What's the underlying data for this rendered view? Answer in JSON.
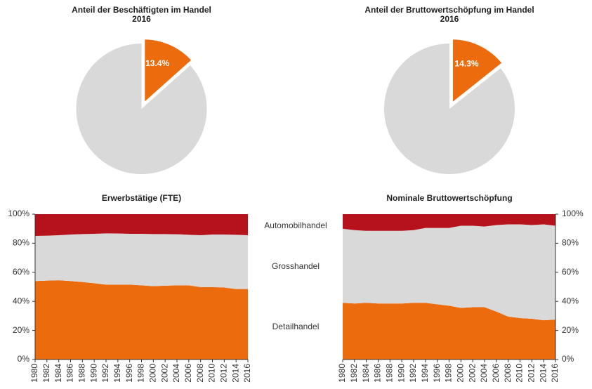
{
  "chart_data": [
    {
      "type": "pie",
      "title": "Anteil der Beschäftigten im Handel",
      "subtitle": "2016",
      "values": [
        13.4,
        86.6
      ],
      "value_labels": [
        "13.4%",
        null
      ],
      "colors": [
        "#ec6c0d",
        "#d9d9d9"
      ],
      "explode": [
        true,
        false
      ]
    },
    {
      "type": "pie",
      "title": "Anteil der Bruttowertschöpfung im Handel",
      "subtitle": "2016",
      "values": [
        14.3,
        85.7
      ],
      "value_labels": [
        "14.3%",
        null
      ],
      "colors": [
        "#ec6c0d",
        "#d9d9d9"
      ],
      "explode": [
        true,
        false
      ]
    },
    {
      "type": "stacked_area",
      "title": "Erwerbstätige (FTE)",
      "y_axis_position": "left",
      "x": [
        1980,
        1982,
        1984,
        1986,
        1988,
        1990,
        1992,
        1994,
        1996,
        1998,
        2000,
        2002,
        2004,
        2006,
        2008,
        2010,
        2012,
        2014,
        2016
      ],
      "xlim": [
        1980,
        2016
      ],
      "xticks": [
        1980,
        1982,
        1984,
        1986,
        1988,
        1990,
        1992,
        1994,
        1996,
        1998,
        2000,
        2002,
        2004,
        2006,
        2008,
        2010,
        2012,
        2014,
        2016
      ],
      "ylim": [
        0,
        100
      ],
      "yticks": [
        {
          "value": 0,
          "label": "0%"
        },
        {
          "value": 20,
          "label": "20%"
        },
        {
          "value": 40,
          "label": "40%"
        },
        {
          "value": 60,
          "label": "60%"
        },
        {
          "value": 80,
          "label": "80%"
        },
        {
          "value": 100,
          "label": "100%"
        }
      ],
      "series": [
        {
          "name": "Detailhandel",
          "color": "#ec6c0d",
          "values": [
            54,
            54.3,
            54.5,
            54,
            53.3,
            52.5,
            51.5,
            51.5,
            51.5,
            51,
            50.5,
            50.8,
            51,
            51,
            49.8,
            49.8,
            49.5,
            48.5,
            48.5
          ]
        },
        {
          "name": "Grosshandel",
          "color": "#d9d9d9",
          "values": [
            31,
            30.9,
            31,
            32,
            33,
            34,
            35.3,
            35.2,
            35,
            35.5,
            35.8,
            35.5,
            35.2,
            34.8,
            35.7,
            36.2,
            36.5,
            37.3,
            37
          ]
        },
        {
          "name": "Automobilhandel",
          "color": "#b5121b",
          "values": [
            15,
            14.8,
            14.5,
            14,
            13.7,
            13.5,
            13.2,
            13.3,
            13.5,
            13.5,
            13.7,
            13.7,
            13.8,
            14.2,
            14.5,
            14,
            14,
            14.2,
            14.5
          ]
        }
      ]
    },
    {
      "type": "stacked_area",
      "title": "Nominale Bruttowertschöpfung",
      "y_axis_position": "right",
      "x": [
        1980,
        1982,
        1984,
        1986,
        1988,
        1990,
        1992,
        1994,
        1996,
        1998,
        2000,
        2002,
        2004,
        2006,
        2008,
        2010,
        2012,
        2014,
        2016
      ],
      "xlim": [
        1980,
        2016
      ],
      "xticks": [
        1980,
        1982,
        1984,
        1986,
        1988,
        1990,
        1992,
        1994,
        1996,
        1998,
        2000,
        2002,
        2004,
        2006,
        2008,
        2010,
        2012,
        2014,
        2016
      ],
      "ylim": [
        0,
        100
      ],
      "yticks": [
        {
          "value": 0,
          "label": "0%"
        },
        {
          "value": 20,
          "label": "20%"
        },
        {
          "value": 40,
          "label": "40%"
        },
        {
          "value": 60,
          "label": "60%"
        },
        {
          "value": 80,
          "label": "80%"
        },
        {
          "value": 100,
          "label": "100%"
        }
      ],
      "series": [
        {
          "name": "Detailhandel",
          "color": "#ec6c0d",
          "values": [
            39,
            38.5,
            39,
            38.5,
            38.5,
            38.5,
            39,
            39,
            38,
            37,
            35.5,
            36,
            36,
            33,
            29.5,
            28.5,
            28,
            27,
            27.5
          ]
        },
        {
          "name": "Grosshandel",
          "color": "#d9d9d9",
          "values": [
            51,
            50.5,
            49.5,
            50,
            50,
            50,
            50,
            51.5,
            52.5,
            53.5,
            56.5,
            56,
            55.5,
            59.5,
            63.5,
            64.5,
            64.5,
            66,
            64.5
          ]
        },
        {
          "name": "Automobilhandel",
          "color": "#b5121b",
          "values": [
            10,
            11,
            11.5,
            11.5,
            11.5,
            11.5,
            11,
            9.5,
            9.5,
            9.5,
            8,
            8,
            8.5,
            7.5,
            7,
            7,
            7.5,
            7,
            8
          ]
        }
      ]
    }
  ]
}
